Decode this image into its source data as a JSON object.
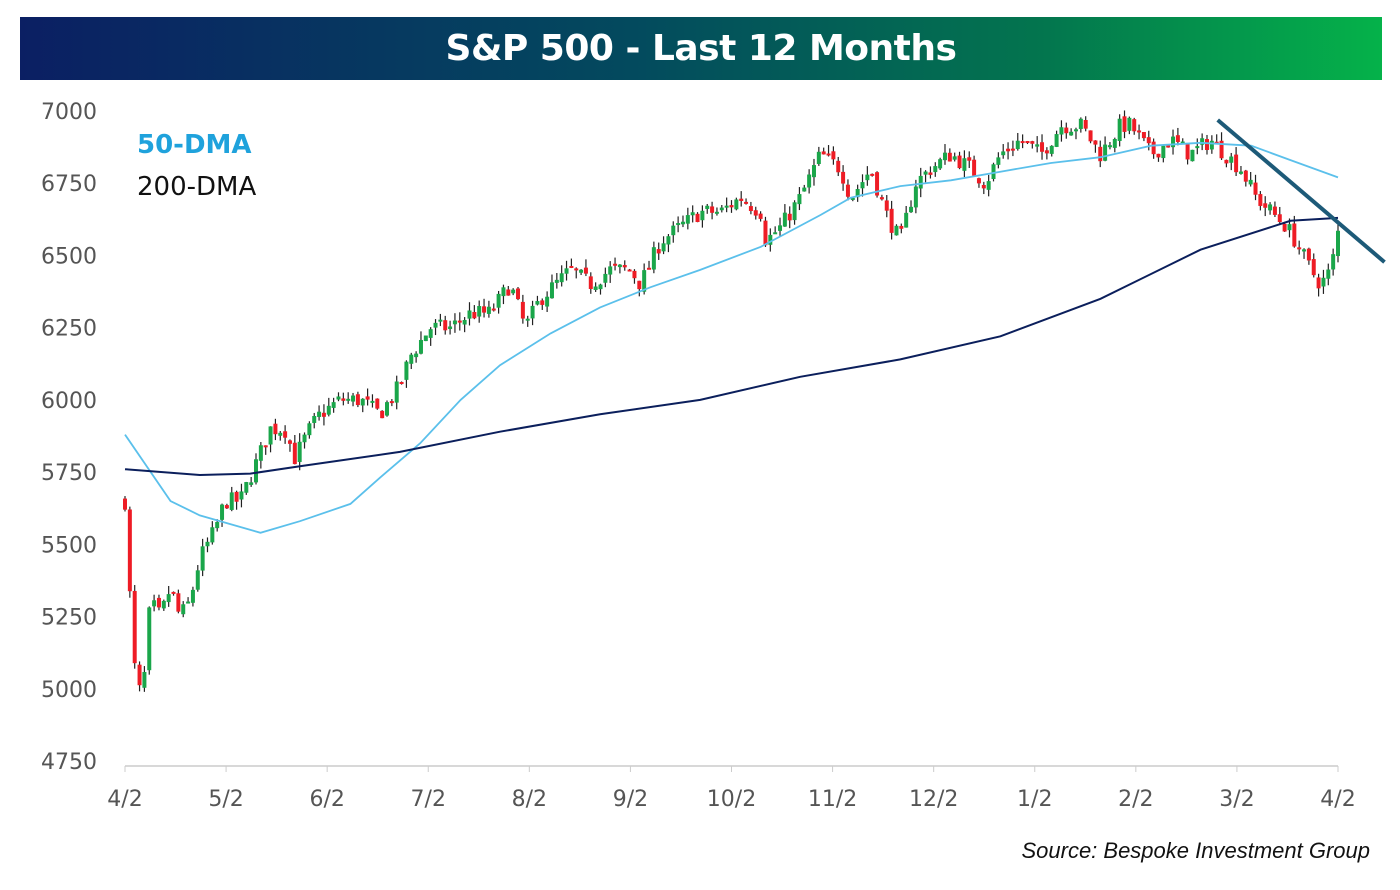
{
  "chart_data": {
    "type": "candlestick",
    "title": "S&P 500 - Last 12 Months",
    "xlabel": "",
    "ylabel": "",
    "ylim": [
      4750,
      7000
    ],
    "xlim_months": [
      0,
      12
    ],
    "yticks": [
      7000,
      6750,
      6500,
      6250,
      6000,
      5750,
      5500,
      5250,
      5000,
      4750
    ],
    "xticks": [
      "4/2",
      "5/2",
      "6/2",
      "7/2",
      "8/2",
      "9/2",
      "10/2",
      "11/2",
      "12/2",
      "1/2",
      "2/2",
      "3/2",
      "4/2"
    ],
    "grid": false,
    "legend": {
      "position": "top-left",
      "entries": [
        {
          "name": "50-DMA",
          "color": "#5bc0eb"
        },
        {
          "name": "200-DMA",
          "color": "#0b1f5c"
        }
      ]
    },
    "price_path": [
      [
        0,
        5650
      ],
      [
        0.03,
        5450
      ],
      [
        0.08,
        5100
      ],
      [
        0.17,
        4950
      ],
      [
        0.25,
        5300
      ],
      [
        0.35,
        5250
      ],
      [
        0.45,
        5350
      ],
      [
        0.54,
        5250
      ],
      [
        0.64,
        5300
      ],
      [
        0.74,
        5450
      ],
      [
        0.89,
        5550
      ],
      [
        0.99,
        5650
      ],
      [
        1.14,
        5650
      ],
      [
        1.32,
        5800
      ],
      [
        1.44,
        5900
      ],
      [
        1.58,
        5900
      ],
      [
        1.68,
        5800
      ],
      [
        1.83,
        5900
      ],
      [
        1.93,
        5950
      ],
      [
        2.13,
        6000
      ],
      [
        2.33,
        6000
      ],
      [
        2.52,
        5950
      ],
      [
        2.72,
        6050
      ],
      [
        2.82,
        6150
      ],
      [
        3.02,
        6250
      ],
      [
        3.22,
        6250
      ],
      [
        3.42,
        6300
      ],
      [
        3.61,
        6300
      ],
      [
        3.81,
        6400
      ],
      [
        3.96,
        6250
      ],
      [
        4.11,
        6350
      ],
      [
        4.26,
        6400
      ],
      [
        4.41,
        6450
      ],
      [
        4.6,
        6400
      ],
      [
        4.8,
        6450
      ],
      [
        5.0,
        6450
      ],
      [
        5.1,
        6400
      ],
      [
        5.3,
        6550
      ],
      [
        5.5,
        6600
      ],
      [
        5.69,
        6650
      ],
      [
        5.89,
        6650
      ],
      [
        6.09,
        6700
      ],
      [
        6.29,
        6650
      ],
      [
        6.34,
        6550
      ],
      [
        6.49,
        6600
      ],
      [
        6.68,
        6700
      ],
      [
        6.88,
        6850
      ],
      [
        7.08,
        6800
      ],
      [
        7.18,
        6700
      ],
      [
        7.38,
        6800
      ],
      [
        7.52,
        6650
      ],
      [
        7.67,
        6550
      ],
      [
        7.82,
        6750
      ],
      [
        7.97,
        6800
      ],
      [
        8.17,
        6850
      ],
      [
        8.37,
        6800
      ],
      [
        8.51,
        6750
      ],
      [
        8.66,
        6850
      ],
      [
        8.86,
        6900
      ],
      [
        9.06,
        6850
      ],
      [
        9.26,
        6950
      ],
      [
        9.46,
        6950
      ],
      [
        9.65,
        6850
      ],
      [
        9.85,
        6950
      ],
      [
        9.95,
        6950
      ],
      [
        10.15,
        6850
      ],
      [
        10.35,
        6900
      ],
      [
        10.54,
        6850
      ],
      [
        10.74,
        6900
      ],
      [
        10.89,
        6850
      ],
      [
        11.04,
        6800
      ],
      [
        11.19,
        6700
      ],
      [
        11.34,
        6650
      ],
      [
        11.49,
        6600
      ],
      [
        11.58,
        6550
      ],
      [
        11.73,
        6450
      ],
      [
        11.83,
        6400
      ],
      [
        11.93,
        6450
      ],
      [
        12.0,
        6580
      ]
    ],
    "ma50": [
      [
        0,
        5880
      ],
      [
        0.45,
        5650
      ],
      [
        0.74,
        5600
      ],
      [
        1.34,
        5540
      ],
      [
        1.73,
        5580
      ],
      [
        2.23,
        5640
      ],
      [
        2.52,
        5730
      ],
      [
        2.92,
        5850
      ],
      [
        3.32,
        6000
      ],
      [
        3.71,
        6120
      ],
      [
        4.21,
        6230
      ],
      [
        4.7,
        6320
      ],
      [
        5.2,
        6390
      ],
      [
        5.69,
        6450
      ],
      [
        6.29,
        6530
      ],
      [
        6.88,
        6640
      ],
      [
        7.18,
        6700
      ],
      [
        7.67,
        6740
      ],
      [
        8.17,
        6760
      ],
      [
        8.66,
        6790
      ],
      [
        9.16,
        6820
      ],
      [
        9.65,
        6840
      ],
      [
        10.15,
        6880
      ],
      [
        10.64,
        6890
      ],
      [
        11.14,
        6880
      ],
      [
        11.53,
        6830
      ],
      [
        12.0,
        6770
      ]
    ],
    "ma200": [
      [
        0,
        5760
      ],
      [
        0.74,
        5740
      ],
      [
        1.24,
        5745
      ],
      [
        1.73,
        5770
      ],
      [
        2.72,
        5820
      ],
      [
        3.71,
        5890
      ],
      [
        4.7,
        5950
      ],
      [
        5.69,
        6000
      ],
      [
        6.68,
        6080
      ],
      [
        7.67,
        6140
      ],
      [
        8.66,
        6220
      ],
      [
        9.65,
        6350
      ],
      [
        10.64,
        6520
      ],
      [
        11.53,
        6620
      ],
      [
        12.0,
        6630
      ]
    ],
    "trendline": [
      [
        10.81,
        6969
      ],
      [
        12.46,
        6477
      ]
    ],
    "colors": {
      "up": "#1aa64a",
      "down": "#ee1c25",
      "wick": "#222222",
      "trendline": "#1d5a78"
    }
  },
  "source": "Source: Bespoke Investment Group"
}
